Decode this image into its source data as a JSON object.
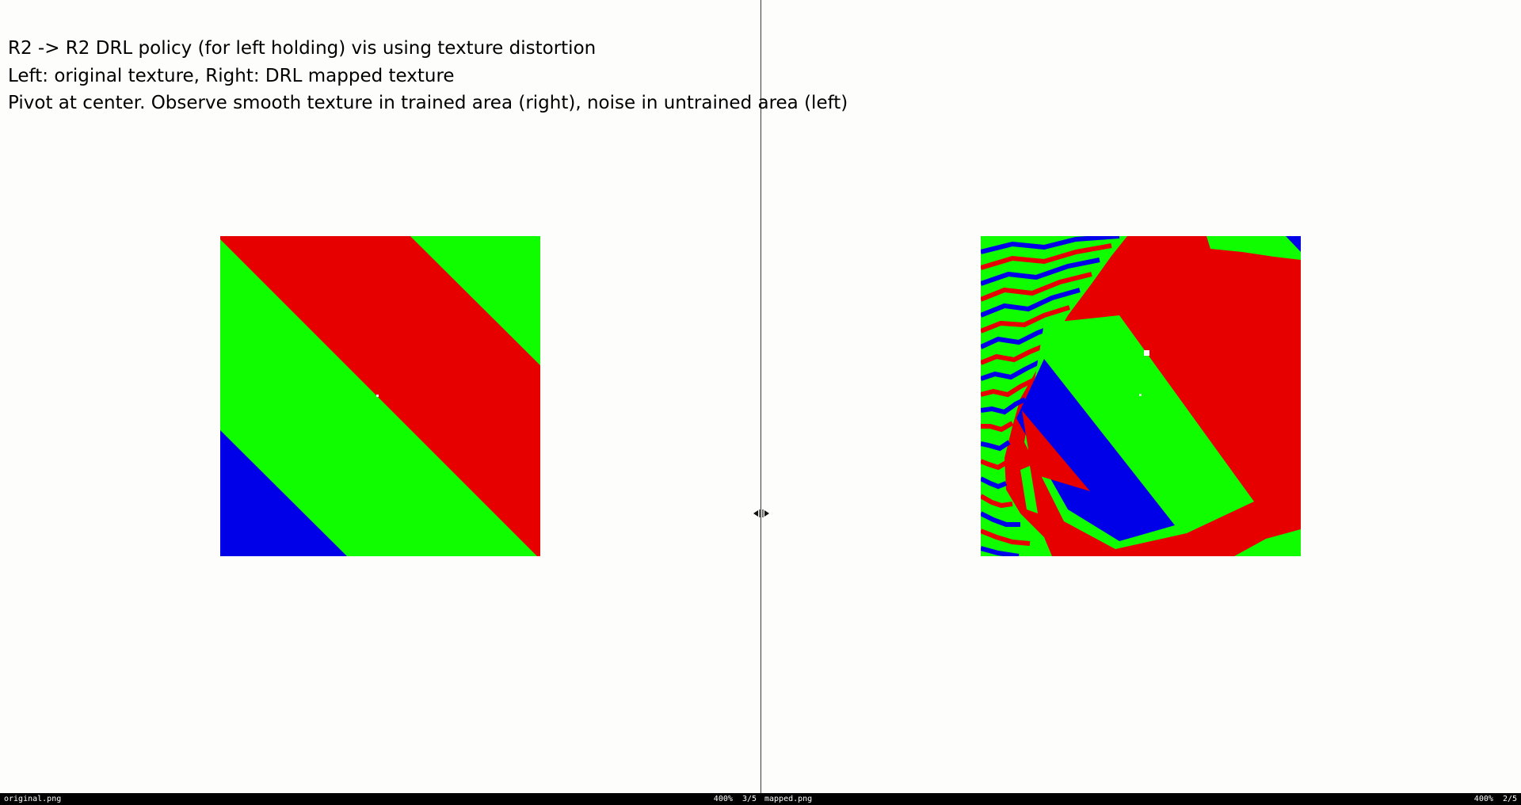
{
  "caption": {
    "line1": "R2 -> R2 DRL policy (for left holding) vis using texture distortion",
    "line2": "Left: original texture, Right: DRL mapped texture",
    "line3": "Pivot at center. Observe smooth texture in trained area (right), noise in untrained area (left)"
  },
  "colors": {
    "background": "#fdfdfc",
    "red": "#e60000",
    "green": "#10fd00",
    "blue": "#0000e8",
    "statusbar": "#000000"
  },
  "left_viewer": {
    "filename": "original.png",
    "zoom": "400%",
    "index": "3/5"
  },
  "right_viewer": {
    "filename": "mapped.png",
    "zoom": "400%",
    "index": "2/5"
  },
  "icons": {
    "resize_handle": "resize-horizontal-icon"
  }
}
